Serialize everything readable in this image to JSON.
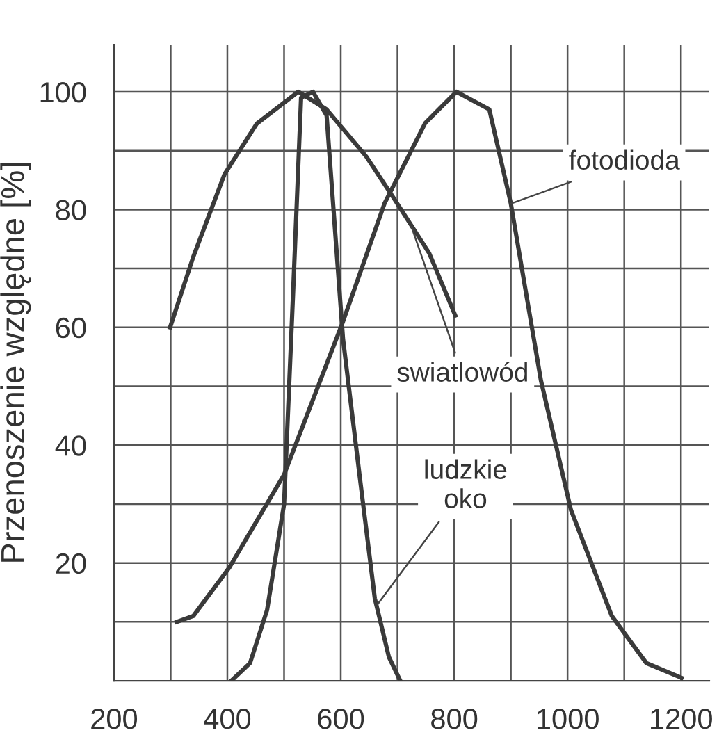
{
  "chart_data": {
    "type": "line",
    "ylabel": "Przenoszenie względne [%]",
    "series": [
      {
        "color": "#3a3a3a",
        "x": [
          299,
          340,
          395,
          452,
          525,
          575,
          645,
          693,
          756,
          802
        ],
        "values": [
          60,
          72,
          86,
          94.6,
          100,
          97,
          89,
          82,
          72.6,
          62
        ]
      },
      {
        "color": "#3a3a3a",
        "x": [
          407,
          440,
          470,
          500,
          516,
          530,
          551,
          575,
          604,
          633,
          660,
          685,
          705
        ],
        "values": [
          0,
          3,
          12,
          30,
          66,
          99,
          100,
          96,
          58,
          35,
          14,
          4,
          0
        ]
      },
      {
        "color": "#3a3a3a",
        "x": [
          311,
          340,
          404,
          500,
          604,
          677,
          749,
          804,
          862,
          900,
          953,
          1006,
          1078,
          1139,
          1201
        ],
        "values": [
          10,
          11,
          19.3,
          35,
          61,
          81,
          94.7,
          100,
          97,
          81,
          51,
          29,
          11,
          3,
          0.5
        ]
      }
    ],
    "annotations": [
      {
        "text": "fotodioda",
        "x": 900,
        "y": 81
      },
      {
        "text": "swiatlowód",
        "x": 725,
        "y": 77
      },
      {
        "text": "ludzkie\noko",
        "x": 665,
        "y": 13
      }
    ],
    "xlim": [
      200,
      1250
    ],
    "ylim": [
      0,
      108
    ],
    "xticks": [
      200,
      {
        "value": 300,
        "label": null
      },
      400,
      {
        "value": 500,
        "label": null
      },
      600,
      {
        "value": 700,
        "label": null
      },
      800,
      {
        "value": 900,
        "label": null
      },
      1000,
      {
        "value": 1100,
        "label": null
      },
      1200
    ],
    "yticks": [
      {
        "value": 10,
        "label": null
      },
      20,
      {
        "value": 30,
        "label": null
      },
      40,
      {
        "value": 50,
        "label": null
      },
      60,
      {
        "value": 70,
        "label": null
      },
      80,
      {
        "value": 90,
        "label": null
      },
      100
    ],
    "grid": true,
    "marker": "none",
    "line_style": "solid"
  }
}
